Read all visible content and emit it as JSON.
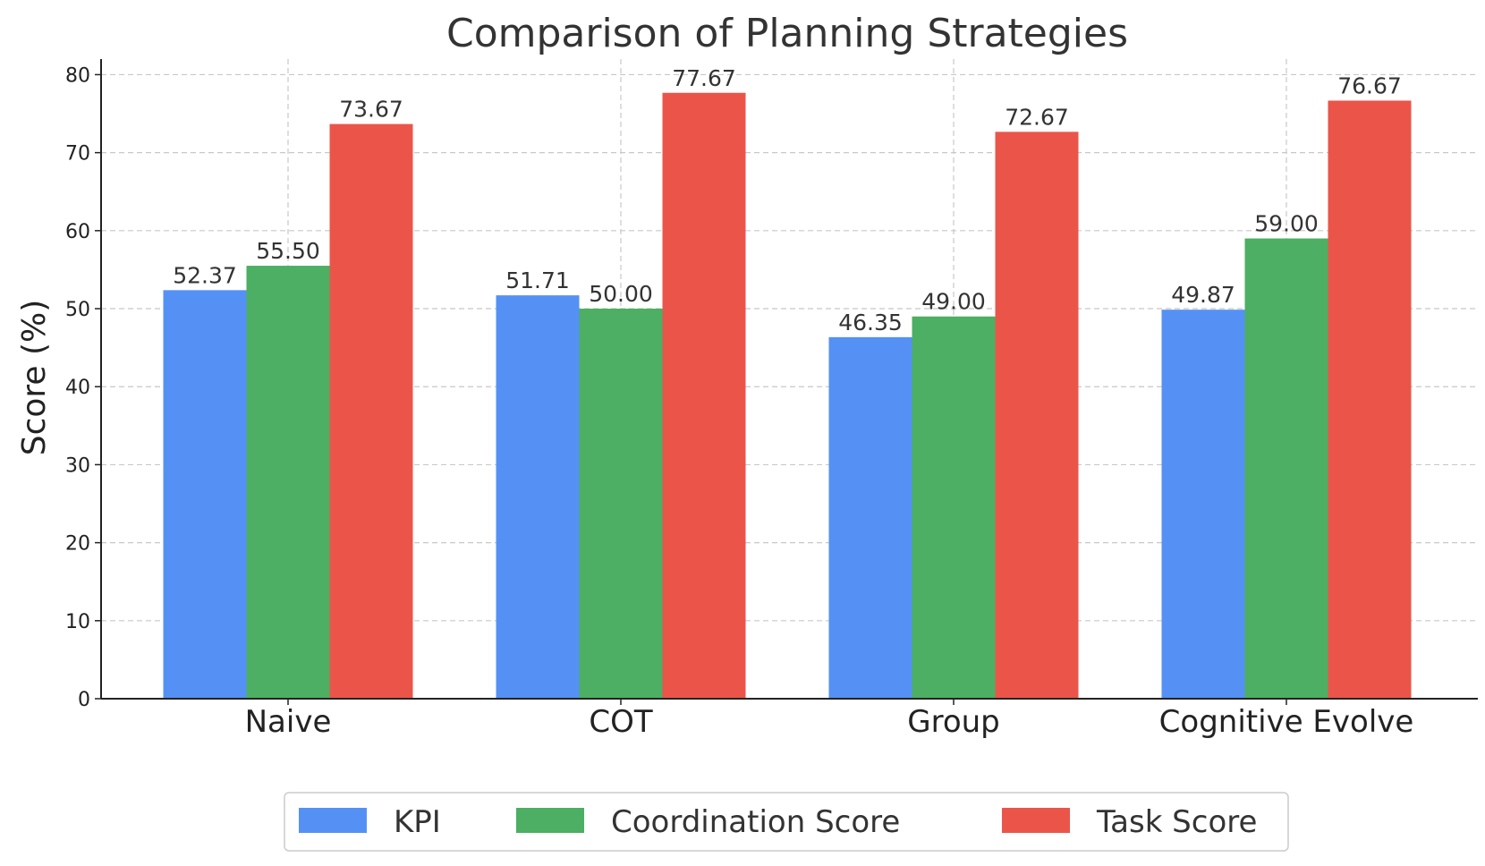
{
  "chart_data": {
    "type": "bar",
    "title": "Comparison of Planning Strategies",
    "xlabel": "",
    "ylabel": "Score (%)",
    "ylim": [
      0,
      82
    ],
    "yticks": [
      0,
      10,
      20,
      30,
      40,
      50,
      60,
      70,
      80
    ],
    "grid": true,
    "legend_position": "bottom-center",
    "categories": [
      "Naive",
      "COT",
      "Group",
      "Cognitive Evolve"
    ],
    "series": [
      {
        "name": "KPI",
        "color": "#5591f5",
        "values": [
          52.37,
          51.71,
          46.35,
          49.87
        ],
        "labels": [
          "52.37",
          "51.71",
          "46.35",
          "49.87"
        ]
      },
      {
        "name": "Coordination Score",
        "color": "#4caf63",
        "values": [
          55.5,
          50.0,
          49.0,
          59.0
        ],
        "labels": [
          "55.50",
          "50.00",
          "49.00",
          "59.00"
        ]
      },
      {
        "name": "Task Score",
        "color": "#eb5549",
        "values": [
          73.67,
          77.67,
          72.67,
          76.67
        ],
        "labels": [
          "73.67",
          "77.67",
          "72.67",
          "76.67"
        ]
      }
    ]
  }
}
